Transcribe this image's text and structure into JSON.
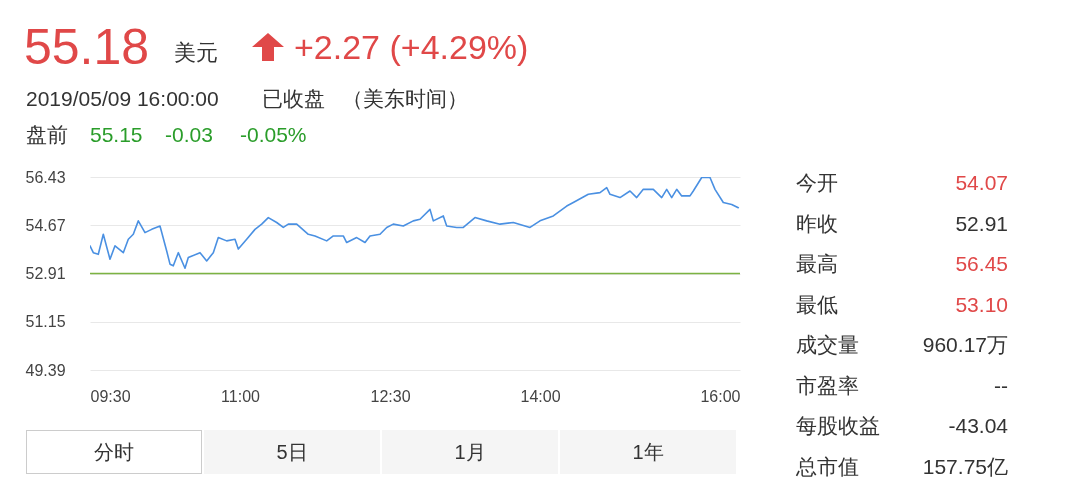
{
  "chart_data": {
    "type": "line",
    "title": "55.18",
    "annotations": [
      "美元",
      "+2.27 (+4.29%)",
      "2019/05/09 16:00:00",
      "已收盘",
      "（美东时间）",
      "盘前",
      "55.15",
      "-0.03",
      "-0.05%",
      "今开",
      "54.07",
      "昨收",
      "52.91",
      "最高",
      "56.45",
      "最低",
      "53.10",
      "成交量",
      "960.17万",
      "市盈率",
      "--",
      "每股收益",
      "-43.04",
      "总市值",
      "157.75亿",
      "分时",
      "5日",
      "1月",
      "1年"
    ],
    "x": [
      9.5,
      9.533,
      9.583,
      9.633,
      9.7,
      9.75,
      9.833,
      9.883,
      9.933,
      9.983,
      10.05,
      10.117,
      10.2,
      10.267,
      10.3,
      10.333,
      10.383,
      10.45,
      10.483,
      10.6,
      10.667,
      10.733,
      10.783,
      10.867,
      10.95,
      10.983,
      11.067,
      11.15,
      11.217,
      11.283,
      11.367,
      11.433,
      11.483,
      11.567,
      11.683,
      11.75,
      11.867,
      11.933,
      12.033,
      12.067,
      12.167,
      12.25,
      12.3,
      12.4,
      12.467,
      12.533,
      12.633,
      12.733,
      12.8,
      12.9,
      12.933,
      13.033,
      13.067,
      13.167,
      13.233,
      13.35,
      13.467,
      13.6,
      13.733,
      13.9,
      14.0,
      14.133,
      14.267,
      14.333,
      14.483,
      14.6,
      14.667,
      14.7,
      14.8,
      14.9,
      14.967,
      15.033,
      15.133,
      15.217,
      15.267,
      15.317,
      15.367,
      15.417,
      15.5,
      15.533,
      15.617,
      15.7,
      15.75,
      15.833,
      15.917,
      15.983
    ],
    "series": [
      {
        "color": "#4a90e2",
        "values": [
          53.92,
          53.67,
          53.61,
          54.34,
          53.43,
          53.92,
          53.67,
          54.16,
          54.34,
          54.83,
          54.4,
          54.52,
          54.64,
          53.73,
          53.25,
          53.19,
          53.67,
          53.1,
          53.49,
          53.67,
          53.37,
          53.67,
          54.22,
          54.1,
          54.16,
          53.8,
          54.16,
          54.52,
          54.71,
          54.95,
          54.77,
          54.59,
          54.71,
          54.71,
          54.34,
          54.28,
          54.1,
          54.28,
          54.28,
          54.04,
          54.22,
          54.04,
          54.28,
          54.34,
          54.59,
          54.71,
          54.64,
          54.83,
          54.89,
          55.25,
          54.83,
          55.01,
          54.64,
          54.59,
          54.59,
          54.95,
          54.83,
          54.71,
          54.77,
          54.59,
          54.83,
          55.01,
          55.37,
          55.5,
          55.8,
          55.86,
          56.04,
          55.8,
          55.68,
          55.92,
          55.68,
          55.98,
          55.98,
          55.68,
          55.98,
          55.68,
          55.98,
          55.74,
          55.74,
          55.92,
          56.41,
          56.41,
          55.98,
          55.5,
          55.43,
          55.31
        ]
      }
    ],
    "xlim": [
      9.5,
      16
    ],
    "xticks": [
      {
        "value": 9.5,
        "label": "09:30"
      },
      {
        "value": 11,
        "label": "11:00"
      },
      {
        "value": 12.5,
        "label": "12:30"
      },
      {
        "value": 14,
        "label": "14:00"
      },
      {
        "value": 16,
        "label": "16:00"
      }
    ],
    "ylim": [
      49.39,
      56.43
    ],
    "yticks": [
      49.39,
      51.15,
      52.91,
      54.67,
      56.43
    ],
    "ref_lines": [
      {
        "axis": "y",
        "value": 52.91,
        "color": "#7cb342"
      }
    ],
    "grid": "y",
    "line_style": "solid"
  }
}
